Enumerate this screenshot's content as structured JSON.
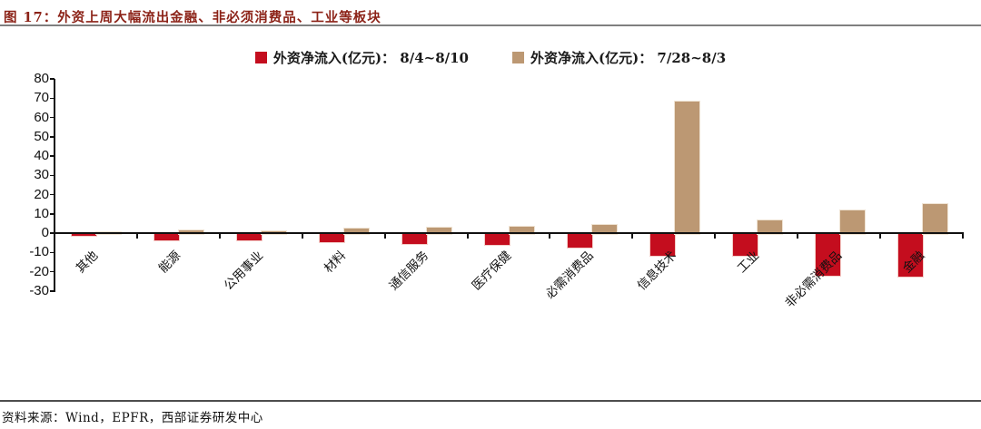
{
  "title": "图 17：外资上周大幅流出金融、非必须消费品、工业等板块",
  "footer": {
    "source_label": "资料来源：Wind，EPFR，西部证券研发中心"
  },
  "colors": {
    "series1_red": "#C40D1E",
    "series2_tan": "#BC9873",
    "title_text": "#8C2318",
    "axis": "#111111",
    "rule_top": "#7f7f7f",
    "rule_bottom": "#4d4d4d"
  },
  "chart_data": {
    "type": "bar",
    "title": "图 17：外资上周大幅流出金融、非必须消费品、工业等板块",
    "categories": [
      "其他",
      "能源",
      "公用事业",
      "材料",
      "通信服务",
      "医疗保健",
      "必需消费品",
      "信息技术",
      "工业",
      "非必需消费品",
      "金融"
    ],
    "series": [
      {
        "name": "外资净流入(亿元)： 8/4~8/10",
        "color": "#C40D1E",
        "values": [
          -1,
          -3,
          -3,
          -4,
          -5,
          -5.5,
          -7,
          -11,
          -11,
          -21.5,
          -22
        ]
      },
      {
        "name": "外资净流入(亿元)： 7/28~8/3",
        "color": "#BC9873",
        "values": [
          0.8,
          1.8,
          1.6,
          3,
          3.2,
          4,
          4.8,
          68.5,
          7,
          12.5,
          15.5
        ]
      }
    ],
    "ylabel": "",
    "xlabel": "",
    "ylim": [
      -30,
      80
    ],
    "ytick_step": 10,
    "yticks": [
      80,
      70,
      60,
      50,
      40,
      30,
      20,
      10,
      0,
      -10,
      -20,
      -30
    ],
    "grid": false,
    "legend_position": "top-center"
  }
}
